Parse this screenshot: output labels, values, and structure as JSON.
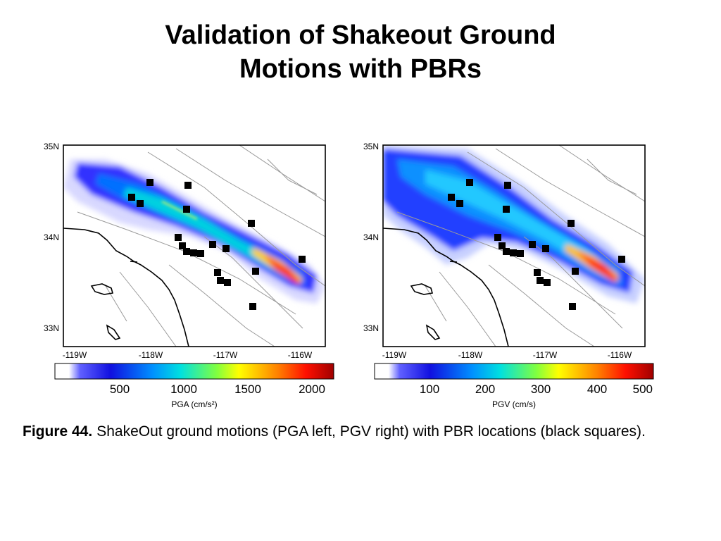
{
  "slide": {
    "title_line1": "Validation of Shakeout Ground",
    "title_line2": "Motions with PBRs"
  },
  "map_left": {
    "lat_labels": [
      "35N",
      "34N",
      "33N"
    ],
    "lon_labels": [
      "-119W",
      "-118W",
      "-117W",
      "-116W"
    ],
    "colorbar_ticks": [
      "500",
      "1000",
      "1500",
      "2000"
    ],
    "colorbar_label": "PGA (cm/s²)"
  },
  "map_right": {
    "lat_labels": [
      "35N",
      "34N",
      "33N"
    ],
    "lon_labels": [
      "-119W",
      "-118W",
      "-117W",
      "-116W"
    ],
    "colorbar_ticks": [
      "100",
      "200",
      "300",
      "400",
      "500"
    ],
    "colorbar_label": "PGV (cm/s)"
  },
  "caption": {
    "figure_label": "Figure 44.",
    "text": "ShakeOut ground motions (PGA left, PGV right) with PBR locations (black squares)."
  },
  "colors": {
    "colormap": [
      "#ffffff",
      "#2020ff",
      "#00a0ff",
      "#00e0e0",
      "#80ff40",
      "#ffff00",
      "#ff8000",
      "#ff0000",
      "#a00000"
    ],
    "marker": "#000000",
    "fault_lines": "#999999",
    "coastline": "#000000"
  }
}
